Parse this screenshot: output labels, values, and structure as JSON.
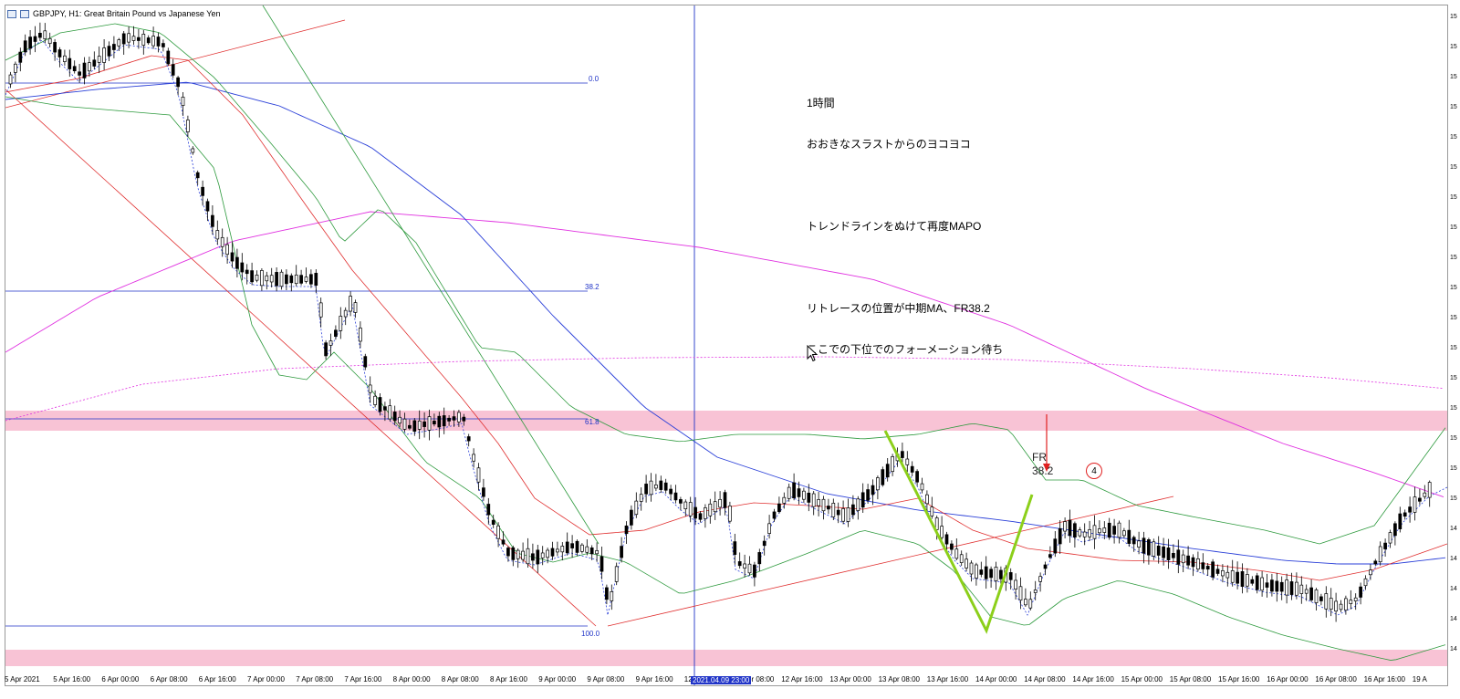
{
  "window": {
    "title": "GBPJPY, H1:  Great Britain Pound vs Japanese Yen"
  },
  "annotations": {
    "line1": "1時間",
    "line2": "おおきなスラストからのヨコヨコ",
    "line3": "トレンドラインをぬけて再度MAPO",
    "line4": "リトレースの位置が中期MA、FR38.2",
    "line5": "ここでの下位でのフォーメーション待ち",
    "fr_line1": "FR",
    "fr_line2": "38.2",
    "circle_number": "4"
  },
  "fibonacci": {
    "level_0": "0.0",
    "level_382": "38.2",
    "level_618": "61.8",
    "level_100": "100.0"
  },
  "x_axis": {
    "labels": [
      "5 Apr 2021",
      "5 Apr 16:00",
      "6 Apr 00:00",
      "6 Apr 08:00",
      "6 Apr 16:00",
      "7 Apr 00:00",
      "7 Apr 08:00",
      "7 Apr 16:00",
      "8 Apr 00:00",
      "8 Apr 08:00",
      "8 Apr 16:00",
      "9 Apr 00:00",
      "9 Apr 08:00",
      "9 Apr 16:00",
      "12 Apr 00:00",
      "12 Apr 08:00",
      "12 Apr 16:00",
      "13 Apr 00:00",
      "13 Apr 08:00",
      "13 Apr 16:00",
      "14 Apr 00:00",
      "14 Apr 08:00",
      "14 Apr 16:00",
      "15 Apr 00:00",
      "15 Apr 08:00",
      "15 Apr 16:00",
      "16 Apr 00:00",
      "16 Apr 08:00",
      "16 Apr 16:00",
      "19 A"
    ],
    "crosshair_date": "2021.04.09 23:00"
  },
  "y_axis": {
    "tick_stub": "15",
    "tick_stub_low": "14"
  },
  "colors": {
    "fib_line": "#1f33c7",
    "crosshair": "#1f33c7",
    "zone": "#f7bcd0",
    "ma_red": "#e03030",
    "ma_blue": "#2a3fd8",
    "ma_magenta": "#e030e0",
    "bollinger": "#2e9a3e",
    "pattern_green": "#8ccf1a",
    "arrow_red": "#e02020"
  },
  "icons": {
    "window_icon": "chart-window-icon",
    "pointer": "mouse-pointer-icon"
  }
}
